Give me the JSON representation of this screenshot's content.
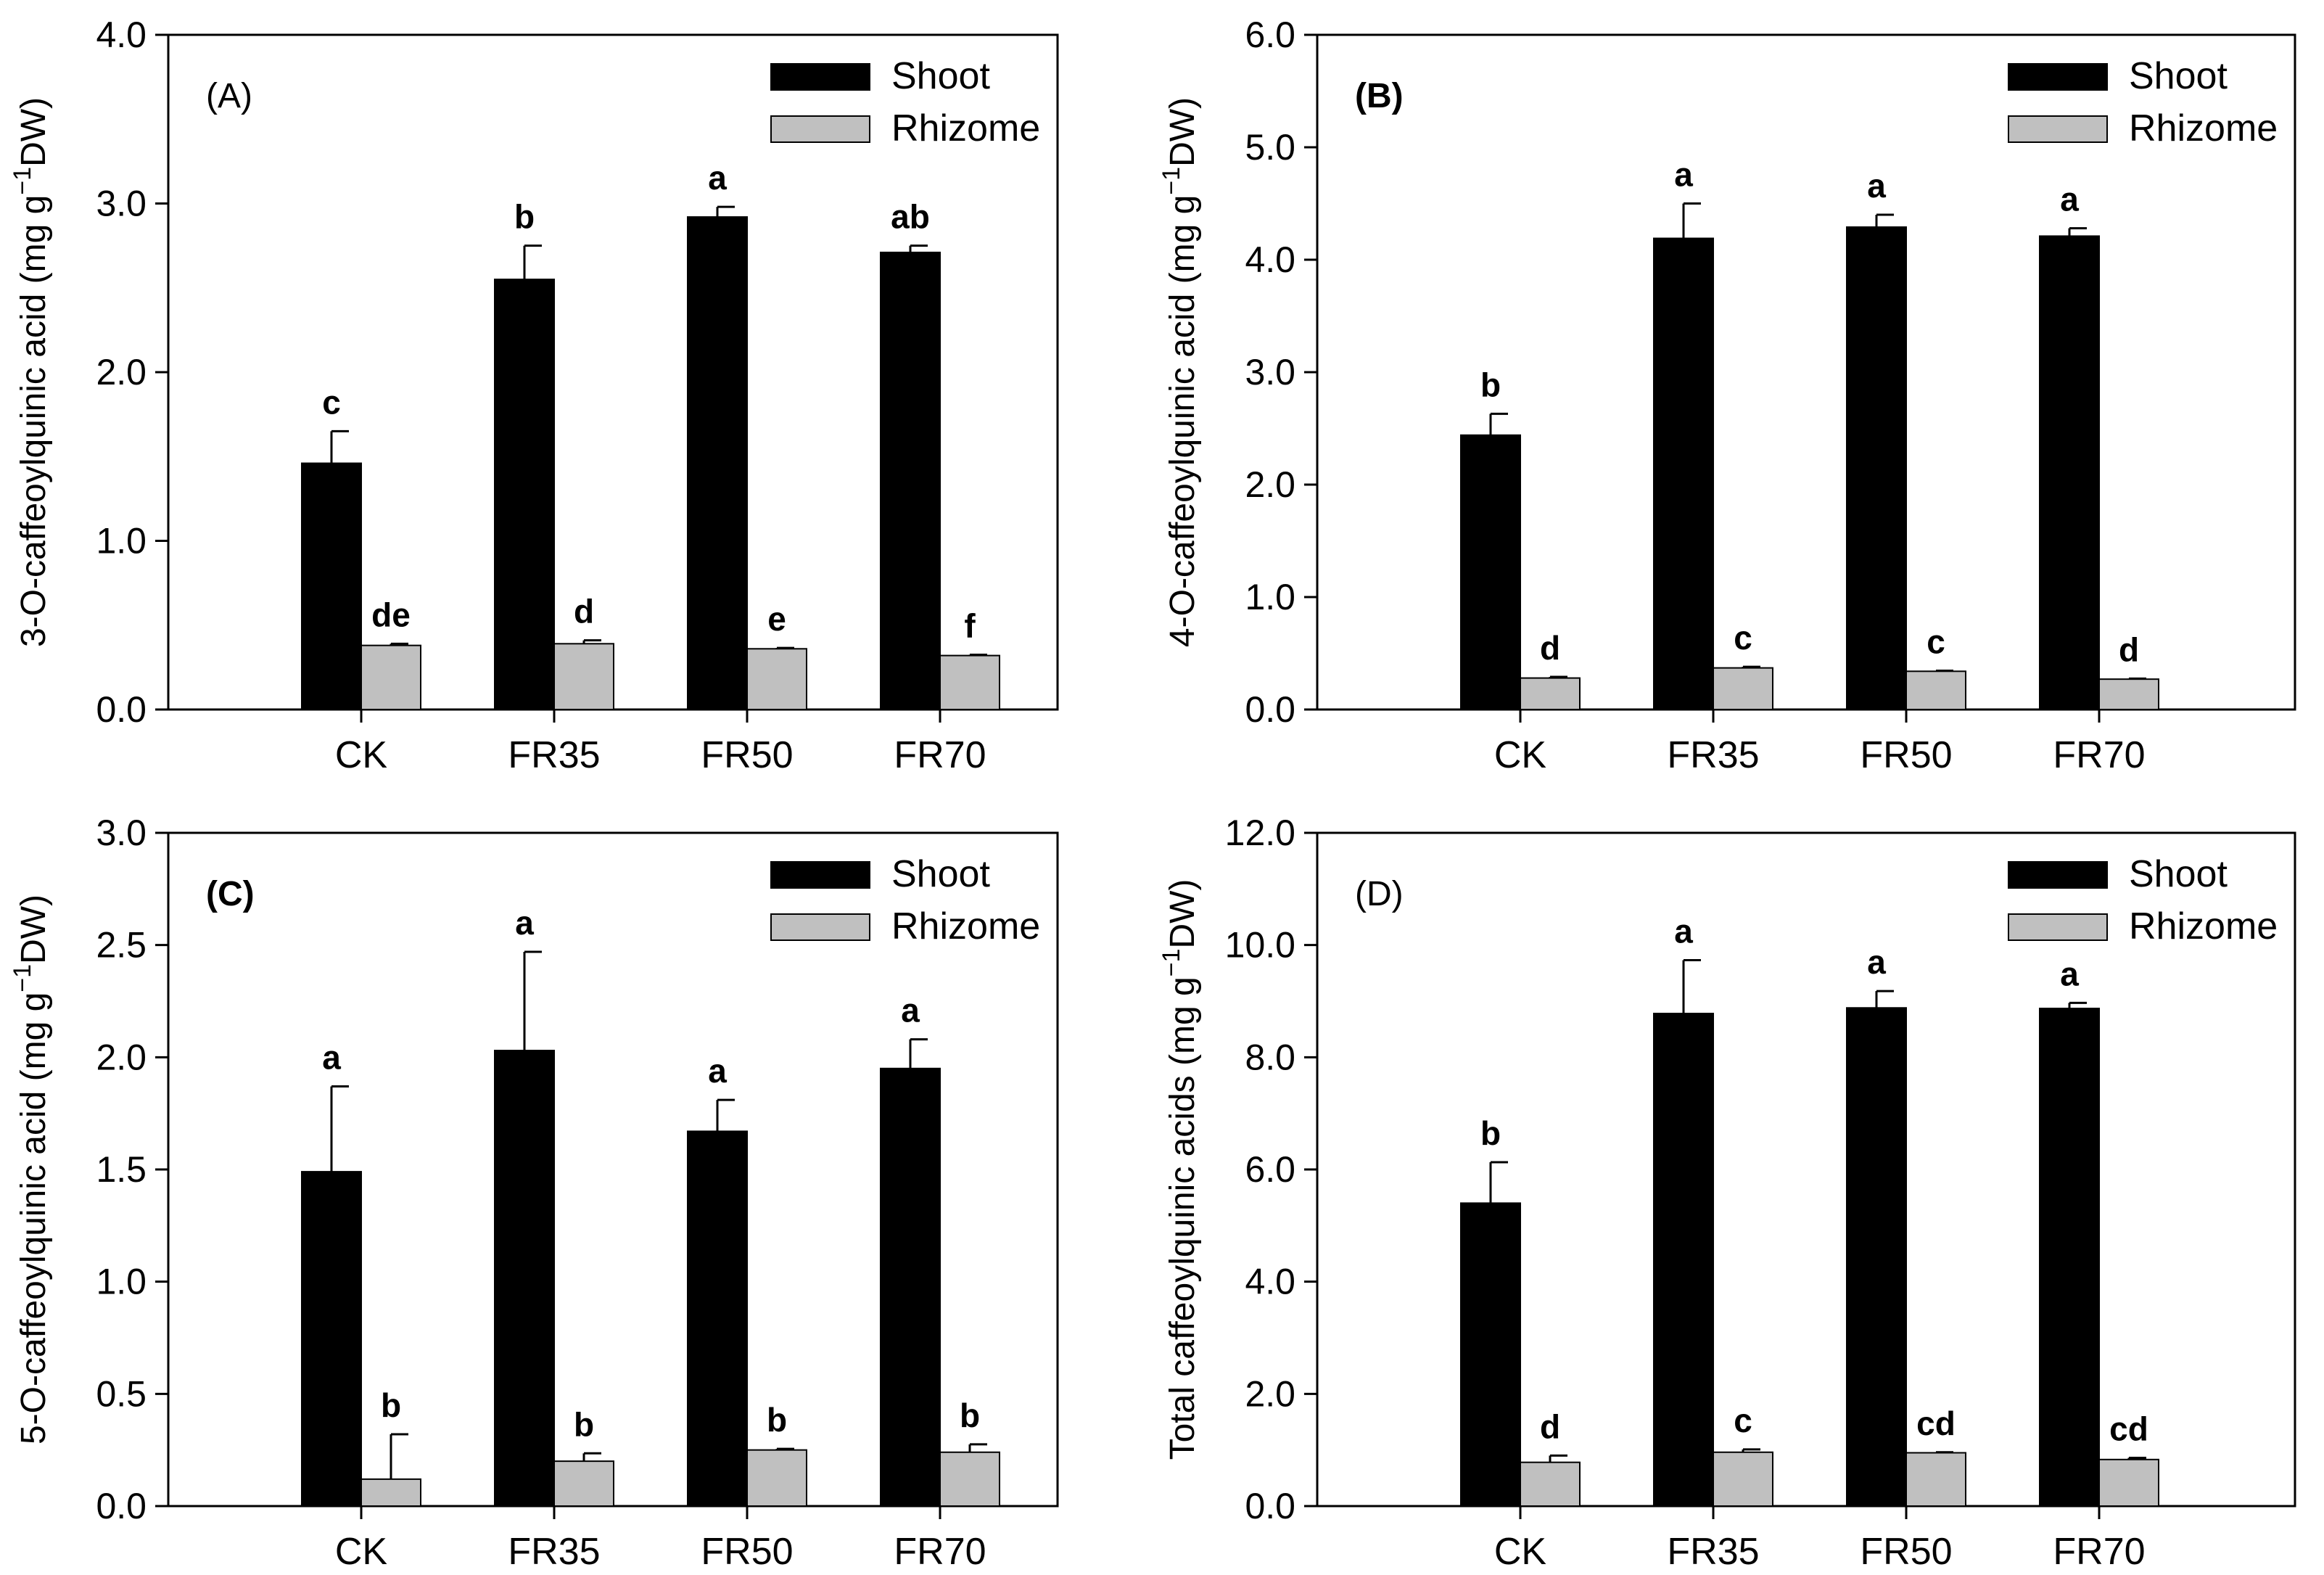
{
  "chart_data": [
    {
      "type": "bar",
      "panel_label": "(A)",
      "panel_label_bold": false,
      "categories": [
        "CK",
        "FR35",
        "FR50",
        "FR70"
      ],
      "ylabel": "3-O-caffeoylquinic acid (mg g-1DW)",
      "ylabel_parts": {
        "pre": "3-O-caffeoylquinic acid (mg g",
        "sup": "−1",
        "post": "DW)"
      },
      "ylim": [
        0,
        4
      ],
      "yticks": [
        "0.0",
        "1.0",
        "2.0",
        "3.0",
        "4.0"
      ],
      "legend": {
        "position": "top-right",
        "entries": [
          "Shoot",
          "Rhizome"
        ]
      },
      "series": [
        {
          "name": "Shoot",
          "color": "#000000",
          "values": [
            1.46,
            2.55,
            2.92,
            2.71
          ],
          "errors": [
            0.19,
            0.2,
            0.06,
            0.04
          ],
          "letters": [
            "c",
            "b",
            "a",
            "ab"
          ]
        },
        {
          "name": "Rhizome",
          "color": "#c0c0c0",
          "values": [
            0.38,
            0.39,
            0.36,
            0.32
          ],
          "errors": [
            0.01,
            0.02,
            0.005,
            0.005
          ],
          "letters": [
            "de",
            "d",
            "e",
            "f"
          ]
        }
      ]
    },
    {
      "type": "bar",
      "panel_label": "(B)",
      "panel_label_bold": true,
      "categories": [
        "CK",
        "FR35",
        "FR50",
        "FR70"
      ],
      "ylabel": "4-O-caffeoylquinic acid (mg g-1DW)",
      "ylabel_parts": {
        "pre": "4-O-caffeoylquinic acid (mg g",
        "sup": "−1",
        "post": "DW)"
      },
      "ylim": [
        0,
        6
      ],
      "yticks": [
        "0.0",
        "1.0",
        "2.0",
        "3.0",
        "4.0",
        "5.0",
        "6.0"
      ],
      "legend": {
        "position": "top-right",
        "entries": [
          "Shoot",
          "Rhizome"
        ]
      },
      "series": [
        {
          "name": "Shoot",
          "color": "#000000",
          "values": [
            2.44,
            4.19,
            4.29,
            4.21
          ],
          "errors": [
            0.19,
            0.31,
            0.11,
            0.07
          ],
          "letters": [
            "b",
            "a",
            "a",
            "a"
          ]
        },
        {
          "name": "Rhizome",
          "color": "#c0c0c0",
          "values": [
            0.28,
            0.37,
            0.34,
            0.27
          ],
          "errors": [
            0.01,
            0.01,
            0.005,
            0.005
          ],
          "letters": [
            "d",
            "c",
            "c",
            "d"
          ]
        }
      ]
    },
    {
      "type": "bar",
      "panel_label": "(C)",
      "panel_label_bold": true,
      "categories": [
        "CK",
        "FR35",
        "FR50",
        "FR70"
      ],
      "ylabel": "5-O-caffeoylquinic acid (mg g-1DW)",
      "ylabel_parts": {
        "pre": "5-O-caffeoylquinic acid (mg g",
        "sup": "−1",
        "post": "DW)"
      },
      "ylim": [
        0,
        3
      ],
      "yticks": [
        "0.0",
        "0.5",
        "1.0",
        "1.5",
        "2.0",
        "2.5",
        "3.0"
      ],
      "legend": {
        "position": "top-right",
        "entries": [
          "Shoot",
          "Rhizome"
        ]
      },
      "series": [
        {
          "name": "Shoot",
          "color": "#000000",
          "values": [
            1.49,
            2.03,
            1.67,
            1.95
          ],
          "errors": [
            0.38,
            0.44,
            0.14,
            0.13
          ],
          "letters": [
            "a",
            "a",
            "a",
            "a"
          ]
        },
        {
          "name": "Rhizome",
          "color": "#c0c0c0",
          "values": [
            0.12,
            0.2,
            0.25,
            0.24
          ],
          "errors": [
            0.2,
            0.035,
            0.005,
            0.035
          ],
          "letters": [
            "b",
            "b",
            "b",
            "b"
          ]
        }
      ]
    },
    {
      "type": "bar",
      "panel_label": "(D)",
      "panel_label_bold": false,
      "categories": [
        "CK",
        "FR35",
        "FR50",
        "FR70"
      ],
      "ylabel": "Total caffeoylquinic acids (mg g-1DW)",
      "ylabel_parts": {
        "pre": "Total caffeoylquinic acids (mg g",
        "sup": "−1",
        "post": "DW)"
      },
      "ylim": [
        0,
        12
      ],
      "yticks": [
        "0.0",
        "2.0",
        "4.0",
        "6.0",
        "8.0",
        "10.0",
        "12.0"
      ],
      "legend": {
        "position": "top-right",
        "entries": [
          "Shoot",
          "Rhizome"
        ]
      },
      "series": [
        {
          "name": "Shoot",
          "color": "#000000",
          "values": [
            5.4,
            8.78,
            8.88,
            8.87
          ],
          "errors": [
            0.73,
            0.95,
            0.3,
            0.1
          ],
          "letters": [
            "b",
            "a",
            "a",
            "a"
          ]
        },
        {
          "name": "Rhizome",
          "color": "#c0c0c0",
          "values": [
            0.78,
            0.96,
            0.95,
            0.83
          ],
          "errors": [
            0.12,
            0.05,
            0.01,
            0.03
          ],
          "letters": [
            "d",
            "c",
            "cd",
            "cd"
          ]
        }
      ]
    }
  ]
}
